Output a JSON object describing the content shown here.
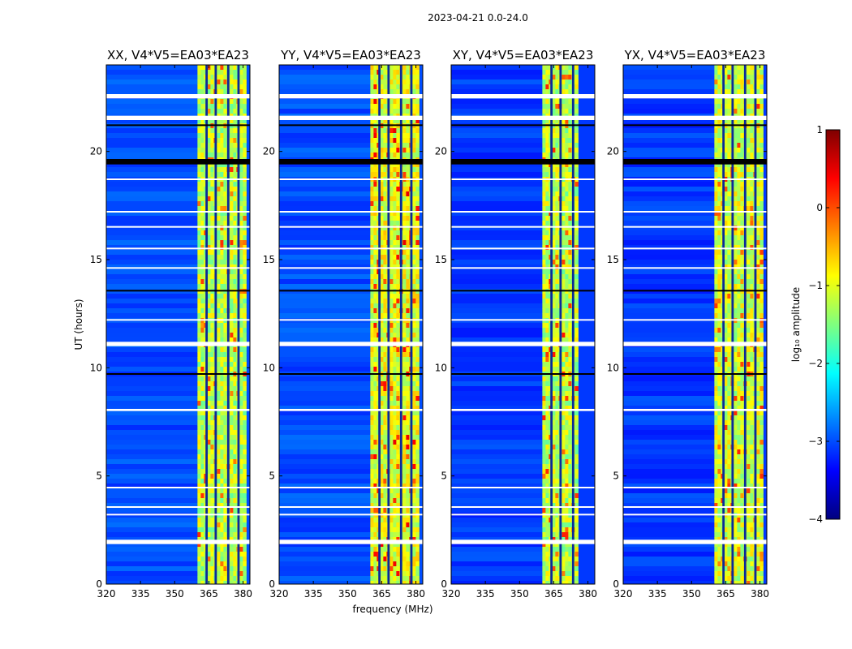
{
  "figure": {
    "suptitle": "2023-04-21 0.0-24.0",
    "xlabel": "frequency (MHz)",
    "ylabel": "UT (hours)"
  },
  "colorbar": {
    "label": "log₁₀ amplitude",
    "ticks": [
      "1",
      "0",
      "−1",
      "−2",
      "−3",
      "−4"
    ],
    "range": [
      -4,
      1
    ],
    "colormap": [
      "#00007f",
      "#0000ff",
      "#007fff",
      "#00ffff",
      "#7fff7f",
      "#ffff00",
      "#ff7f00",
      "#ff0000",
      "#7f0000"
    ]
  },
  "chart_data": {
    "type": "heatmap",
    "x_label": "frequency (MHz)",
    "y_label": "UT (hours)",
    "x_range": [
      320,
      383
    ],
    "y_range": [
      0,
      24
    ],
    "x_ticks": [
      320,
      335,
      350,
      365,
      380
    ],
    "y_ticks": [
      0,
      5,
      10,
      15,
      20
    ],
    "value_label": "log10 amplitude",
    "value_range": [
      -4,
      1
    ],
    "panels": [
      {
        "title": "XX, V4*V5=EA03*EA23",
        "band_start_mhz": 360,
        "band_end_mhz": 380,
        "background_level": -3.0,
        "band_level": -1.2,
        "hot_level": 0.2
      },
      {
        "title": "YY, V4*V5=EA03*EA23",
        "band_start_mhz": 360,
        "band_end_mhz": 380,
        "background_level": -3.0,
        "band_level": -1.0,
        "hot_level": 0.5
      },
      {
        "title": "XY, V4*V5=EA03*EA23",
        "band_start_mhz": 360,
        "band_end_mhz": 375,
        "background_level": -3.1,
        "band_level": -1.2,
        "hot_level": 0.3
      },
      {
        "title": "YX, V4*V5=EA03*EA23",
        "band_start_mhz": 360,
        "band_end_mhz": 380,
        "background_level": -3.1,
        "band_level": -1.1,
        "hot_level": 0.2
      }
    ],
    "flagged_gaps_ut": [
      [
        22.45,
        22.65
      ],
      [
        21.45,
        21.65
      ],
      [
        11.0,
        11.2
      ],
      [
        1.85,
        2.05
      ],
      [
        8.0,
        8.1
      ],
      [
        3.55,
        3.6
      ],
      [
        3.2,
        3.25
      ],
      [
        4.45,
        4.5
      ],
      [
        12.2,
        12.25
      ],
      [
        14.6,
        14.65
      ],
      [
        16.5,
        16.55
      ],
      [
        17.2,
        17.25
      ],
      [
        18.7,
        18.75
      ],
      [
        15.5,
        15.55
      ]
    ],
    "black_bands_ut": [
      [
        19.4,
        19.65
      ],
      [
        13.55,
        13.6
      ],
      [
        9.7,
        9.75
      ],
      [
        21.2,
        21.25
      ]
    ],
    "band_column_edges_mhz": [
      363.5,
      364.5,
      367.5,
      368.5,
      373.0,
      374.0,
      377.5,
      378.5
    ]
  }
}
